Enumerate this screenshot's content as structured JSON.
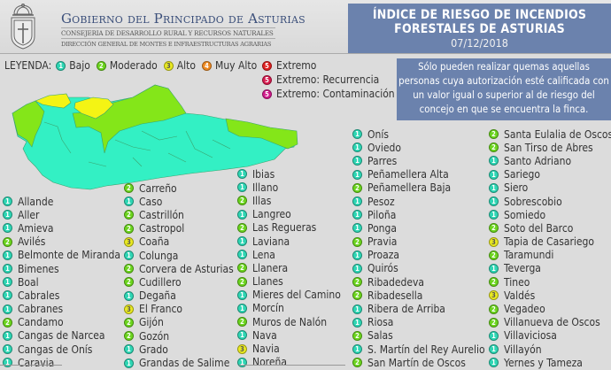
{
  "header": {
    "org": "Gobierno del Principado de Asturias",
    "department": "CONSEJERIA DE DESARROLLO RURAL Y RECURSOS NATURALES",
    "directorate": "DIRECCIÓN GENERAL DE MONTES E INFRAESTRUCTURAS AGRARIAS",
    "logo_icon": "coat-of-arms-icon"
  },
  "title": {
    "line1": "ÍNDICE DE RIESGO DE INCENDIOS",
    "line2": "FORESTALES DE ASTURIAS",
    "date": "07/12/2018"
  },
  "legend": {
    "label": "LEYENDA:",
    "levels": [
      {
        "value": "1",
        "label": "Bajo",
        "color": "#2ed6b4"
      },
      {
        "value": "2",
        "label": "Moderado",
        "color": "#6bd51d"
      },
      {
        "value": "3",
        "label": "Alto",
        "color": "#eaea20"
      },
      {
        "value": "4",
        "label": "Muy Alto",
        "color": "#ef8a22"
      },
      {
        "value": "5",
        "label": "Extremo",
        "color": "#e02020"
      },
      {
        "value": "5",
        "label": "Extremo: Recurrencia",
        "color": "#d61a4e"
      },
      {
        "value": "5",
        "label": "Extremo: Contaminación",
        "color": "#d11a8c"
      }
    ]
  },
  "info": {
    "text": "Sólo pueden realizar quemas aquellas personas cuya autorización esté calificada con un valor igual o superior al de riesgo del concejo en que se encuentra la finca."
  },
  "map": {
    "colors": {
      "bajo": "#33f0c4",
      "moderado": "#84e619",
      "alto": "#f4f414"
    }
  },
  "columns": [
    [
      {
        "name": "Allande",
        "level": 1
      },
      {
        "name": "Aller",
        "level": 1
      },
      {
        "name": "Amieva",
        "level": 1
      },
      {
        "name": "Avilés",
        "level": 2
      },
      {
        "name": "Belmonte de Miranda",
        "level": 1
      },
      {
        "name": "Bimenes",
        "level": 1
      },
      {
        "name": "Boal",
        "level": 1
      },
      {
        "name": "Cabrales",
        "level": 1
      },
      {
        "name": "Cabranes",
        "level": 1
      },
      {
        "name": "Candamo",
        "level": 2
      },
      {
        "name": "Cangas de Narcea",
        "level": 1
      },
      {
        "name": "Cangas de Onís",
        "level": 1
      },
      {
        "name": "Caravia",
        "level": 1
      }
    ],
    [
      {
        "name": "Carreño",
        "level": 2
      },
      {
        "name": "Caso",
        "level": 1
      },
      {
        "name": "Castrillón",
        "level": 2
      },
      {
        "name": "Castropol",
        "level": 2
      },
      {
        "name": "Coaña",
        "level": 3
      },
      {
        "name": "Colunga",
        "level": 1
      },
      {
        "name": "Corvera de Asturias",
        "level": 2
      },
      {
        "name": "Cudillero",
        "level": 2
      },
      {
        "name": "Degaña",
        "level": 1
      },
      {
        "name": "El Franco",
        "level": 3
      },
      {
        "name": "Gijón",
        "level": 2
      },
      {
        "name": "Gozón",
        "level": 2
      },
      {
        "name": "Grado",
        "level": 1
      },
      {
        "name": "Grandas de Salime",
        "level": 1
      }
    ],
    [
      {
        "name": "Ibias",
        "level": 1
      },
      {
        "name": "Illano",
        "level": 1
      },
      {
        "name": "Illas",
        "level": 2
      },
      {
        "name": "Langreo",
        "level": 1
      },
      {
        "name": "Las Regueras",
        "level": 2
      },
      {
        "name": "Laviana",
        "level": 1
      },
      {
        "name": "Lena",
        "level": 1
      },
      {
        "name": "Llanera",
        "level": 2
      },
      {
        "name": "Llanes",
        "level": 2
      },
      {
        "name": "Mieres del Camino",
        "level": 1
      },
      {
        "name": "Morcín",
        "level": 1
      },
      {
        "name": "Muros de Nalón",
        "level": 2
      },
      {
        "name": "Nava",
        "level": 1
      },
      {
        "name": "Navia",
        "level": 3
      },
      {
        "name": "Noreña",
        "level": 1
      }
    ],
    [
      {
        "name": "Onís",
        "level": 1
      },
      {
        "name": "Oviedo",
        "level": 1
      },
      {
        "name": "Parres",
        "level": 1
      },
      {
        "name": "Peñamellera Alta",
        "level": 1
      },
      {
        "name": "Peñamellera Baja",
        "level": 2
      },
      {
        "name": "Pesoz",
        "level": 1
      },
      {
        "name": "Piloña",
        "level": 1
      },
      {
        "name": "Ponga",
        "level": 1
      },
      {
        "name": "Pravia",
        "level": 2
      },
      {
        "name": "Proaza",
        "level": 1
      },
      {
        "name": "Quirós",
        "level": 1
      },
      {
        "name": "Ribadedeva",
        "level": 2
      },
      {
        "name": "Ribadesella",
        "level": 2
      },
      {
        "name": "Ribera de Arriba",
        "level": 1
      },
      {
        "name": "Riosa",
        "level": 1
      },
      {
        "name": "Salas",
        "level": 2
      },
      {
        "name": "S. Martín del Rey Aurelio",
        "level": 1
      },
      {
        "name": "San Martín de Oscos",
        "level": 2
      }
    ],
    [
      {
        "name": "Santa Eulalia de Oscos",
        "level": 2
      },
      {
        "name": "San Tirso de Abres",
        "level": 2
      },
      {
        "name": "Santo Adriano",
        "level": 1
      },
      {
        "name": "Sariego",
        "level": 1
      },
      {
        "name": "Siero",
        "level": 1
      },
      {
        "name": "Sobrescobio",
        "level": 1
      },
      {
        "name": "Somiedo",
        "level": 1
      },
      {
        "name": "Soto del Barco",
        "level": 2
      },
      {
        "name": "Tapia de Casariego",
        "level": 3
      },
      {
        "name": "Taramundi",
        "level": 2
      },
      {
        "name": "Teverga",
        "level": 1
      },
      {
        "name": "Tineo",
        "level": 2
      },
      {
        "name": "Valdés",
        "level": 3
      },
      {
        "name": "Vegadeo",
        "level": 2
      },
      {
        "name": "Villanueva de Oscos",
        "level": 2
      },
      {
        "name": "Villaviciosa",
        "level": 1
      },
      {
        "name": "Villayón",
        "level": 1
      },
      {
        "name": "Yernes y Tameza",
        "level": 1
      }
    ]
  ]
}
